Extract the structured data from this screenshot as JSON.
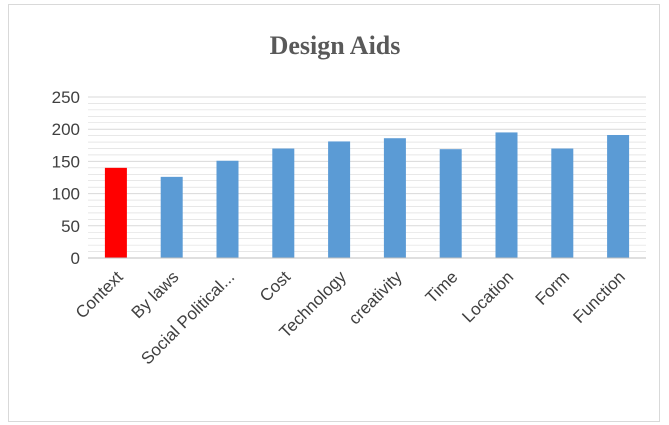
{
  "chart_data": {
    "type": "bar",
    "title": "Design Aids",
    "xlabel": "",
    "ylabel": "",
    "ylim": [
      0,
      250
    ],
    "ytick_step": 50,
    "minor_grid_step": 10,
    "grid": true,
    "categories": [
      "Context",
      "By laws",
      "Social Political...",
      "Cost",
      "Technology",
      "creativity",
      "Time",
      "Location",
      "Form",
      "Function"
    ],
    "values": [
      140,
      126,
      151,
      170,
      181,
      186,
      169,
      195,
      170,
      191
    ],
    "colors": {
      "default": "#5b9bd5",
      "highlight": "#ff0000",
      "gridline": "#d9d9d9",
      "axis": "#bfbfbf"
    },
    "highlight_index": 0
  }
}
